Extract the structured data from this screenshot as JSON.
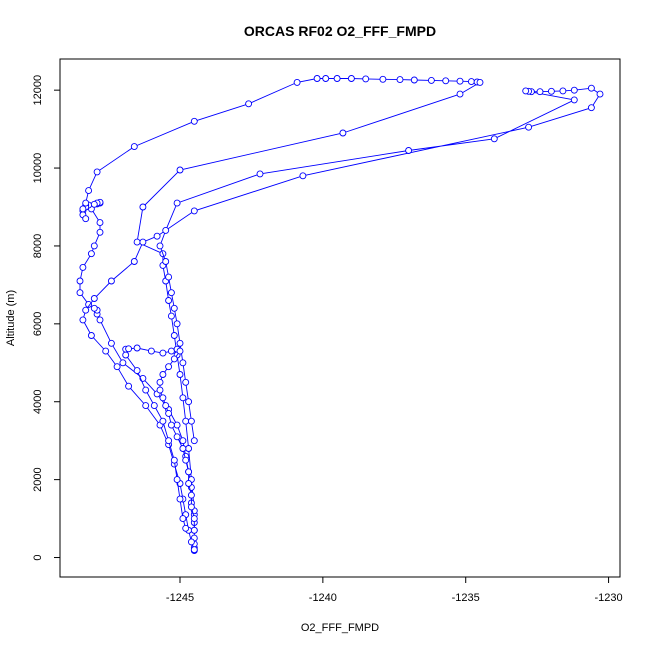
{
  "chart_data": {
    "type": "line",
    "title": "ORCAS RF02 O2_FFF_FMPD",
    "xlabel": "O2_FFF_FMPD",
    "ylabel": "Altitude (m)",
    "xlim": [
      -1249.2,
      -1229.6
    ],
    "ylim": [
      -500,
      12800
    ],
    "xticks": [
      -1245,
      -1240,
      -1235,
      -1230
    ],
    "yticks": [
      0,
      2000,
      4000,
      6000,
      8000,
      10000,
      12000
    ],
    "xtick_labels": [
      "-1245",
      "-1240",
      "-1235",
      "-1230"
    ],
    "ytick_labels": [
      "0",
      "2000",
      "4000",
      "6000",
      "8000",
      "10000",
      "12000"
    ],
    "grid": false,
    "series": [
      {
        "color": "#0000ff",
        "marker": "open-circle",
        "x": [
          -1244.5,
          -1244.5,
          -1244.5,
          -1244.5,
          -1244.5,
          -1244.5,
          -1244.5,
          -1244.6,
          -1244.6,
          -1244.7,
          -1244.8,
          -1244.9,
          -1245.1,
          -1245.4,
          -1245.8,
          -1246.3,
          -1247.0,
          -1247.4,
          -1247.8,
          -1247.9,
          -1247.9,
          -1248.0,
          -1248.2,
          -1248.5,
          -1248.5,
          -1248.4,
          -1248.1,
          -1248.0,
          -1247.8,
          -1247.8,
          -1248.1,
          -1248.2,
          -1247.9,
          -1247.8,
          -1247.8,
          -1247.9,
          -1248.0,
          -1248.3,
          -1248.3,
          -1248.4,
          -1248.4,
          -1248.3,
          -1248.4,
          -1248.3,
          -1248.2,
          -1247.9,
          -1246.6,
          -1244.5,
          -1242.6,
          -1240.9,
          -1240.2,
          -1239.9,
          -1239.5,
          -1239.0,
          -1238.5,
          -1237.9,
          -1237.3,
          -1236.8,
          -1236.2,
          -1235.7,
          -1235.2,
          -1234.8,
          -1234.6,
          -1234.5,
          -1235.2,
          -1239.3,
          -1245.0,
          -1246.3,
          -1246.5,
          -1245.6,
          -1245.6,
          -1245.5,
          -1245.4,
          -1245.3,
          -1245.2,
          -1245.1,
          -1245.0,
          -1244.9,
          -1244.8,
          -1244.7,
          -1244.6,
          -1244.5
        ],
        "y": [
          180,
          250,
          350,
          500,
          700,
          900,
          1100,
          1400,
          1800,
          2200,
          2600,
          3000,
          3400,
          3800,
          4200,
          4600,
          5000,
          5500,
          6100,
          6250,
          6350,
          6400,
          6500,
          6800,
          7100,
          7450,
          7800,
          8000,
          8350,
          8600,
          8950,
          9050,
          9080,
          9100,
          9120,
          9100,
          9070,
          9050,
          9000,
          8900,
          8800,
          8700,
          8950,
          9100,
          9420,
          9900,
          10550,
          11200,
          11650,
          12200,
          12300,
          12300,
          12300,
          12300,
          12290,
          12280,
          12270,
          12260,
          12250,
          12240,
          12230,
          12220,
          12210,
          12200,
          11900,
          10900,
          9950,
          9000,
          8100,
          7800,
          7500,
          7100,
          6600,
          6200,
          5700,
          5200,
          4700,
          4100,
          3500,
          2800,
          2000,
          1200
        ]
      },
      {
        "color": "#0000ff",
        "marker": "open-circle",
        "x": [
          -1244.5,
          -1244.6,
          -1244.7,
          -1244.8,
          -1244.9,
          -1245.0,
          -1245.2,
          -1245.4,
          -1245.7,
          -1246.2,
          -1246.8,
          -1247.2,
          -1247.6,
          -1248.1,
          -1248.4,
          -1248.3,
          -1248.0,
          -1247.4,
          -1246.6,
          -1246.3,
          -1245.8,
          -1244.5,
          -1240.7,
          -1232.8,
          -1230.6,
          -1230.3,
          -1230.6,
          -1231.2,
          -1231.6,
          -1232.0,
          -1232.4,
          -1232.7,
          -1232.8,
          -1232.9,
          -1231.2,
          -1234.0,
          -1237.0,
          -1242.2,
          -1245.1,
          -1245.5,
          -1245.7,
          -1245.5,
          -1245.4,
          -1245.3,
          -1245.2,
          -1245.1,
          -1245.0,
          -1244.9,
          -1244.8,
          -1244.7,
          -1244.6,
          -1244.5
        ],
        "y": [
          200,
          400,
          700,
          1100,
          1500,
          1900,
          2400,
          2900,
          3400,
          3900,
          4400,
          4900,
          5300,
          5700,
          6100,
          6350,
          6650,
          7100,
          7600,
          8100,
          8250,
          8900,
          9800,
          11050,
          11550,
          11900,
          12050,
          12000,
          11980,
          11970,
          11960,
          11960,
          11970,
          11980,
          11750,
          10750,
          10450,
          9850,
          9100,
          8400,
          8000,
          7600,
          7200,
          6800,
          6400,
          6000,
          5500,
          5000,
          4500,
          4000,
          3500,
          3000
        ]
      },
      {
        "color": "#0000ff",
        "marker": "open-circle",
        "x": [
          -1244.8,
          -1244.9,
          -1245.0,
          -1245.1,
          -1245.2,
          -1245.4,
          -1245.6,
          -1245.9,
          -1246.2,
          -1246.5,
          -1246.9,
          -1246.9,
          -1246.8,
          -1246.5,
          -1246.0,
          -1245.6,
          -1245.3,
          -1245.1,
          -1245.0,
          -1245.2,
          -1245.4,
          -1245.6,
          -1245.7,
          -1245.7,
          -1245.6,
          -1245.5,
          -1245.4,
          -1245.3,
          -1245.1,
          -1244.9,
          -1244.8,
          -1244.7,
          -1244.7,
          -1244.6,
          -1244.6,
          -1244.5,
          -1244.5
        ],
        "y": [
          750,
          1000,
          1500,
          2000,
          2500,
          3000,
          3500,
          3900,
          4300,
          4800,
          5200,
          5350,
          5360,
          5380,
          5300,
          5250,
          5300,
          5350,
          5300,
          5100,
          4900,
          4700,
          4500,
          4300,
          4100,
          3900,
          3700,
          3400,
          3100,
          2800,
          2500,
          2200,
          1900,
          1600,
          1300,
          1000,
          700
        ]
      }
    ]
  }
}
